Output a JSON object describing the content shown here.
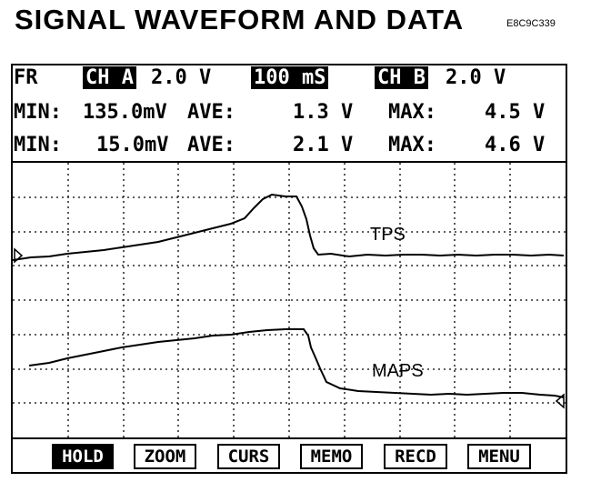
{
  "header": {
    "title": "SIGNAL WAVEFORM AND DATA",
    "figure_code": "E8C9C339"
  },
  "scope": {
    "mode": "FR",
    "channel_a": {
      "label": "CH A",
      "scale": "2.0 V"
    },
    "timebase": "100 mS",
    "channel_b": {
      "label": "CH B",
      "scale": "2.0 V"
    },
    "readouts": [
      {
        "min_label": "MIN:",
        "min": "135.0mV",
        "ave_label": "AVE:",
        "ave": "1.3 V",
        "max_label": "MAX:",
        "max": "4.5 V"
      },
      {
        "min_label": "MIN:",
        "min": "15.0mV",
        "ave_label": "AVE:",
        "ave": "2.1 V",
        "max_label": "MAX:",
        "max": "4.6 V"
      }
    ],
    "traces": [
      {
        "name": "TPS"
      },
      {
        "name": "MAPS"
      }
    ],
    "softkeys": [
      {
        "label": "HOLD",
        "active": true
      },
      {
        "label": "ZOOM",
        "active": false
      },
      {
        "label": "CURS",
        "active": false
      },
      {
        "label": "MEMO",
        "active": false
      },
      {
        "label": "RECD",
        "active": false
      },
      {
        "label": "MENU",
        "active": false
      }
    ]
  },
  "colors": {
    "ink": "#000000",
    "paper": "#ffffff"
  }
}
